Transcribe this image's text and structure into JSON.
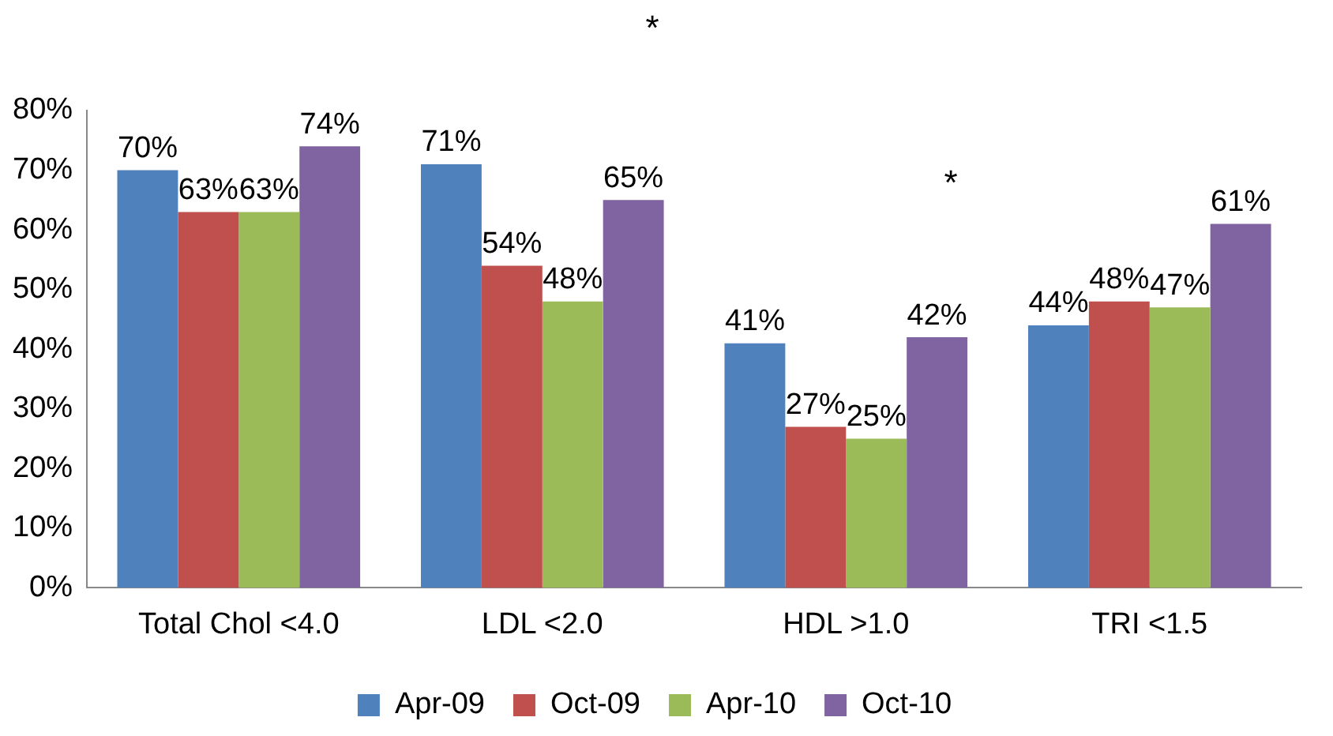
{
  "chart_data": {
    "type": "bar",
    "categories": [
      "Total Chol <4.0",
      "LDL <2.0",
      "HDL >1.0",
      "TRI <1.5"
    ],
    "series": [
      {
        "name": "Apr-09",
        "color": "#4f81bd",
        "values": [
          70,
          71,
          41,
          44
        ]
      },
      {
        "name": "Oct-09",
        "color": "#c0504d",
        "values": [
          63,
          54,
          27,
          48
        ]
      },
      {
        "name": "Apr-10",
        "color": "#9bbb59",
        "values": [
          63,
          48,
          25,
          47
        ]
      },
      {
        "name": "Oct-10",
        "color": "#8064a2",
        "values": [
          74,
          65,
          42,
          61
        ]
      }
    ],
    "ylim": [
      0,
      80
    ],
    "yticks": [
      {
        "value": 0,
        "label": "0%"
      },
      {
        "value": 10,
        "label": "10%"
      },
      {
        "value": 20,
        "label": "20%"
      },
      {
        "value": 30,
        "label": "30%"
      },
      {
        "value": 40,
        "label": "40%"
      },
      {
        "value": 50,
        "label": "50%"
      },
      {
        "value": 60,
        "label": "60%"
      },
      {
        "value": 70,
        "label": "70%"
      },
      {
        "value": 80,
        "label": "80%"
      }
    ],
    "value_labels": [
      [
        "70%",
        "71%",
        "41%",
        "44%"
      ],
      [
        "63%",
        "54%",
        "27%",
        "48%"
      ],
      [
        "63%",
        "48%",
        "25%",
        "47%"
      ],
      [
        "74%",
        "65%",
        "42%",
        "61%"
      ]
    ],
    "annotations": [
      "*",
      "*"
    ],
    "grid": false,
    "legend": "bottom"
  }
}
